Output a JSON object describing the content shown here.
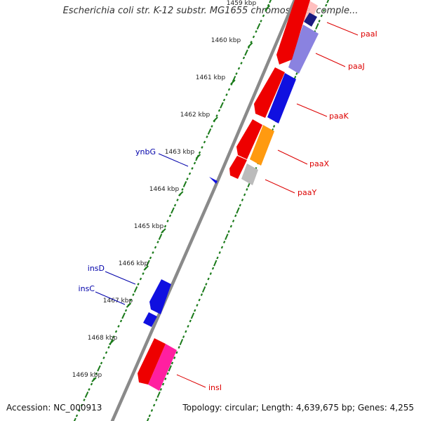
{
  "title": "Escherichia coli str. K-12 substr. MG1655 chromosome, comple...",
  "footer": {
    "accession": "Accession: NC_000913",
    "topology": "Topology: circular; Length: 4,639,675 bp; Genes: 4,255"
  },
  "ticks": [
    "1459 kbp",
    "1460 kbp",
    "1461 kbp",
    "1462 kbp",
    "1463 kbp",
    "1464 kbp",
    "1465 kbp",
    "1466 kbp",
    "1467 kbp",
    "1468 kbp",
    "1469 kbp"
  ],
  "gene_labels": {
    "paaI": "paaI",
    "paaJ": "paaJ",
    "paaK": "paaK",
    "paaX": "paaX",
    "paaY": "paaY",
    "ynbG": "ynbG",
    "insD": "insD",
    "insC": "insC",
    "insI": "insI"
  },
  "colors": {
    "backbone": "#8a8a8a",
    "tick": "#1a7a1a",
    "red": "#ee0000",
    "blue": "#1010e0",
    "orange": "#ff9a10",
    "gray": "#bbbbbb",
    "pink": "#ff1fa0",
    "violet": "#8a82e0",
    "label_red": "#dd0000",
    "label_blue": "#0000aa"
  }
}
